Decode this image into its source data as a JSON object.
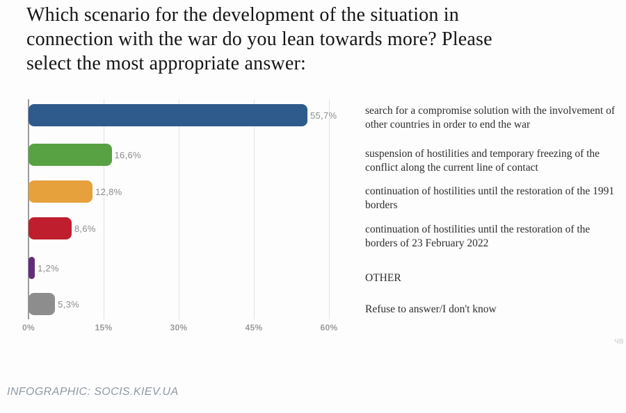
{
  "title": {
    "full": "Which scenario for the development of the situation in connection with the war do you lean towards more? Please select the most appropriate answer:",
    "lines": [
      "Which scenario for the development of the situation in",
      "connection with the war do you lean towards more? Please",
      "select the most appropriate answer:"
    ]
  },
  "chart_data": {
    "type": "bar",
    "orientation": "horizontal",
    "title": "Which scenario for the development of the situation in connection with the war do you lean towards more? Please select the most appropriate answer:",
    "categories": [
      "search for a compromise solution with the involvement of other countries in order to end the war",
      "suspension of hostilities and temporary freezing of the conflict along the current line of contact",
      "continuation of hostilities until the restoration of the 1991 borders",
      "continuation of hostilities until the restoration of the borders of 23 February 2022",
      "OTHER",
      "Refuse to answer/I don't know"
    ],
    "values": [
      55.7,
      16.6,
      12.8,
      8.6,
      1.2,
      5.3
    ],
    "value_labels": [
      "55,7%",
      "16,6%",
      "12,8%",
      "8,6%",
      "1,2%",
      "5,3%"
    ],
    "bar_colors": [
      "#2f5a8c",
      "#58a243",
      "#e6a13c",
      "#bf1e2e",
      "#622c7e",
      "#8d8d8d"
    ],
    "xticks": [
      "0%",
      "15%",
      "30%",
      "45%",
      "60%"
    ],
    "xtick_values": [
      0,
      15,
      30,
      45,
      60
    ],
    "xlim": [
      0,
      60
    ],
    "xlabel": "",
    "ylabel": "",
    "grid": true,
    "legend_position": "right"
  },
  "footer": {
    "credit": "INFOGRAPHIC: SOCIS.KIEV.UA"
  },
  "watermark": {
    "text": "чв"
  }
}
